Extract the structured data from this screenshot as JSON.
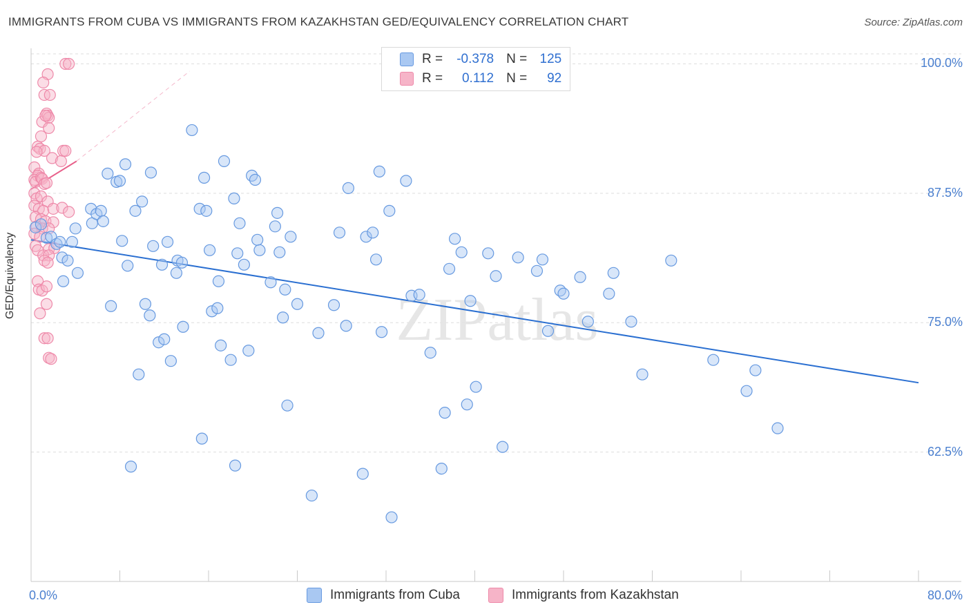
{
  "title": "IMMIGRANTS FROM CUBA VS IMMIGRANTS FROM KAZAKHSTAN GED/EQUIVALENCY CORRELATION CHART",
  "source": "Source: ZipAtlas.com",
  "watermark": "ZIPatlas",
  "legend_stats": {
    "r_label": "R =",
    "n_label": "N =",
    "cuba": {
      "r": "-0.378",
      "n": "125"
    },
    "kazakhstan": {
      "r": "0.112",
      "n": "92"
    }
  },
  "colors": {
    "cuba_fill": "#a9c8f2",
    "cuba_stroke": "#6699e0",
    "cuba_line": "#2a6fd1",
    "kaz_fill": "#f6b4c8",
    "kaz_stroke": "#ee89a9",
    "kaz_line": "#e8608a",
    "tick_text": "#4a7fcf",
    "grid": "#dddddd"
  },
  "chart_data": {
    "type": "scatter",
    "title": "IMMIGRANTS FROM CUBA VS IMMIGRANTS FROM KAZAKHSTAN GED/EQUIVALENCY CORRELATION CHART",
    "xlabel": "",
    "ylabel": "GED/Equivalency",
    "xlim": [
      0,
      80
    ],
    "ylim": [
      50,
      101.5
    ],
    "x_tick_labels": [
      "0.0%",
      "80.0%"
    ],
    "y_ticks": [
      62.5,
      75.0,
      87.5,
      100.0
    ],
    "y_tick_labels": [
      "62.5%",
      "75.0%",
      "87.5%",
      "100.0%"
    ],
    "grid": true,
    "legend_position": "top-center",
    "series": [
      {
        "name": "Immigrants from Cuba",
        "trend": {
          "x": [
            0,
            80
          ],
          "y": [
            83.0,
            69.2
          ]
        },
        "points": [
          [
            0.4,
            84.2
          ],
          [
            0.9,
            84.5
          ],
          [
            1.4,
            83.2
          ],
          [
            1.8,
            83.3
          ],
          [
            2.3,
            82.6
          ],
          [
            2.6,
            82.8
          ],
          [
            2.8,
            81.3
          ],
          [
            2.9,
            79.0
          ],
          [
            3.3,
            81.0
          ],
          [
            3.7,
            82.8
          ],
          [
            4.0,
            84.1
          ],
          [
            4.2,
            79.8
          ],
          [
            5.4,
            86.0
          ],
          [
            5.5,
            84.6
          ],
          [
            5.9,
            85.5
          ],
          [
            6.3,
            85.8
          ],
          [
            6.5,
            84.8
          ],
          [
            6.9,
            89.4
          ],
          [
            7.2,
            76.6
          ],
          [
            7.7,
            88.6
          ],
          [
            8.0,
            88.7
          ],
          [
            8.2,
            82.9
          ],
          [
            8.5,
            90.3
          ],
          [
            8.7,
            80.5
          ],
          [
            9.0,
            61.1
          ],
          [
            9.4,
            85.8
          ],
          [
            9.7,
            70.0
          ],
          [
            10.0,
            86.7
          ],
          [
            10.3,
            76.8
          ],
          [
            10.7,
            75.7
          ],
          [
            10.8,
            89.5
          ],
          [
            11.0,
            82.4
          ],
          [
            11.5,
            73.1
          ],
          [
            11.8,
            80.6
          ],
          [
            12.0,
            73.4
          ],
          [
            12.3,
            82.8
          ],
          [
            12.6,
            71.3
          ],
          [
            13.1,
            79.8
          ],
          [
            13.2,
            81.0
          ],
          [
            13.6,
            80.8
          ],
          [
            13.7,
            74.6
          ],
          [
            14.5,
            93.6
          ],
          [
            15.2,
            86.0
          ],
          [
            15.4,
            63.8
          ],
          [
            15.6,
            89.0
          ],
          [
            15.8,
            85.8
          ],
          [
            16.1,
            82.0
          ],
          [
            16.3,
            76.1
          ],
          [
            16.8,
            76.4
          ],
          [
            16.9,
            79.0
          ],
          [
            17.1,
            72.8
          ],
          [
            17.4,
            90.6
          ],
          [
            18.0,
            71.4
          ],
          [
            18.3,
            87.0
          ],
          [
            18.4,
            61.2
          ],
          [
            18.6,
            81.7
          ],
          [
            18.8,
            84.6
          ],
          [
            19.2,
            80.6
          ],
          [
            19.6,
            72.3
          ],
          [
            19.9,
            89.2
          ],
          [
            20.2,
            88.8
          ],
          [
            20.4,
            83.0
          ],
          [
            20.6,
            82.0
          ],
          [
            21.6,
            78.9
          ],
          [
            22.0,
            84.3
          ],
          [
            22.2,
            85.6
          ],
          [
            22.4,
            81.8
          ],
          [
            22.7,
            75.5
          ],
          [
            22.9,
            78.2
          ],
          [
            23.1,
            67.0
          ],
          [
            23.4,
            83.3
          ],
          [
            24.0,
            76.8
          ],
          [
            25.3,
            58.3
          ],
          [
            25.9,
            74.0
          ],
          [
            27.3,
            76.7
          ],
          [
            27.8,
            83.7
          ],
          [
            28.4,
            74.7
          ],
          [
            28.6,
            88.0
          ],
          [
            29.9,
            60.4
          ],
          [
            30.2,
            83.3
          ],
          [
            30.8,
            83.7
          ],
          [
            31.1,
            81.1
          ],
          [
            31.4,
            89.6
          ],
          [
            31.6,
            74.1
          ],
          [
            32.3,
            85.8
          ],
          [
            32.5,
            56.2
          ],
          [
            33.8,
            88.7
          ],
          [
            34.3,
            77.6
          ],
          [
            35.0,
            77.7
          ],
          [
            36.0,
            72.1
          ],
          [
            37.0,
            60.9
          ],
          [
            37.3,
            66.3
          ],
          [
            37.7,
            80.2
          ],
          [
            38.2,
            83.1
          ],
          [
            38.8,
            81.8
          ],
          [
            39.3,
            67.1
          ],
          [
            39.6,
            77.1
          ],
          [
            40.1,
            68.8
          ],
          [
            41.2,
            81.7
          ],
          [
            41.9,
            79.5
          ],
          [
            42.5,
            63.0
          ],
          [
            43.9,
            81.3
          ],
          [
            45.6,
            80.0
          ],
          [
            46.1,
            81.1
          ],
          [
            46.6,
            74.2
          ],
          [
            47.7,
            78.1
          ],
          [
            48.0,
            77.8
          ],
          [
            49.5,
            79.4
          ],
          [
            50.2,
            75.1
          ],
          [
            52.1,
            77.8
          ],
          [
            52.5,
            79.8
          ],
          [
            54.1,
            75.1
          ],
          [
            55.1,
            70.0
          ],
          [
            57.7,
            81.0
          ],
          [
            61.5,
            71.4
          ],
          [
            64.5,
            68.4
          ],
          [
            65.3,
            70.4
          ],
          [
            67.3,
            64.8
          ]
        ]
      },
      {
        "name": "Immigrants from Kazakhstan",
        "trend": {
          "x": [
            0,
            4.1
          ],
          "y": [
            87.9,
            90.6
          ],
          "ext_x": [
            4.1,
            14.3
          ],
          "ext_y": [
            90.6,
            99.3
          ]
        },
        "points": [
          [
            3.1,
            100.0
          ],
          [
            3.4,
            100.0
          ],
          [
            1.5,
            99.0
          ],
          [
            1.1,
            98.2
          ],
          [
            1.2,
            97.0
          ],
          [
            1.7,
            97.0
          ],
          [
            1.0,
            94.4
          ],
          [
            1.4,
            95.2
          ],
          [
            1.5,
            95.0
          ],
          [
            1.6,
            94.8
          ],
          [
            1.3,
            95.0
          ],
          [
            0.9,
            93.0
          ],
          [
            1.6,
            93.8
          ],
          [
            0.6,
            92.0
          ],
          [
            0.8,
            91.8
          ],
          [
            1.2,
            91.6
          ],
          [
            0.5,
            91.5
          ],
          [
            2.9,
            91.6
          ],
          [
            3.1,
            91.6
          ],
          [
            1.9,
            90.9
          ],
          [
            2.7,
            90.6
          ],
          [
            0.3,
            90.0
          ],
          [
            0.7,
            89.4
          ],
          [
            0.6,
            89.2
          ],
          [
            0.3,
            88.8
          ],
          [
            0.4,
            88.6
          ],
          [
            0.9,
            89.0
          ],
          [
            1.0,
            88.9
          ],
          [
            1.2,
            88.4
          ],
          [
            1.4,
            88.5
          ],
          [
            0.3,
            87.5
          ],
          [
            0.5,
            87.0
          ],
          [
            0.9,
            87.2
          ],
          [
            1.5,
            86.7
          ],
          [
            0.3,
            86.3
          ],
          [
            0.7,
            86.0
          ],
          [
            1.1,
            85.8
          ],
          [
            2.0,
            86.0
          ],
          [
            2.8,
            86.1
          ],
          [
            3.4,
            85.7
          ],
          [
            0.4,
            85.2
          ],
          [
            0.9,
            85.0
          ],
          [
            1.3,
            84.8
          ],
          [
            2.0,
            84.7
          ],
          [
            0.5,
            84.3
          ],
          [
            1.0,
            84.1
          ],
          [
            1.6,
            84.1
          ],
          [
            0.3,
            83.6
          ],
          [
            0.8,
            83.3
          ],
          [
            0.4,
            82.4
          ],
          [
            0.6,
            82.0
          ],
          [
            1.6,
            82.1
          ],
          [
            2.1,
            82.2
          ],
          [
            1.1,
            81.5
          ],
          [
            1.6,
            81.5
          ],
          [
            1.2,
            81.0
          ],
          [
            1.5,
            80.8
          ],
          [
            0.6,
            79.0
          ],
          [
            0.7,
            78.2
          ],
          [
            1.0,
            78.1
          ],
          [
            1.4,
            78.5
          ],
          [
            1.4,
            76.8
          ],
          [
            0.8,
            75.9
          ],
          [
            1.2,
            73.5
          ],
          [
            1.5,
            73.5
          ],
          [
            1.6,
            71.6
          ],
          [
            1.8,
            71.5
          ]
        ]
      }
    ]
  },
  "bottom_legend": [
    "Immigrants from Cuba",
    "Immigrants from Kazakhstan"
  ]
}
